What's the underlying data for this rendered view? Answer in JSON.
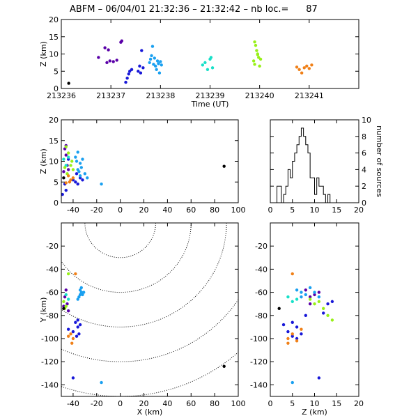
{
  "title": "ABFM – 06/04/01 21:32:36 – 21:32:42 – nb loc.=      87",
  "colors": {
    "axis": "#000000",
    "series": [
      "#000000",
      "#5a00a8",
      "#1818d8",
      "#1aa0f0",
      "#18e0c8",
      "#98f018",
      "#f08018"
    ]
  },
  "chart_data": [
    {
      "id": "time_height",
      "type": "scatter",
      "xlabel": "Time (UT)",
      "ylabel": "Z (km)",
      "xlim": [
        213236,
        213242
      ],
      "ylim": [
        0,
        20
      ],
      "xticks": [
        213236,
        213237,
        213238,
        213239,
        213240,
        213241
      ],
      "yticks": [
        0,
        5,
        10,
        15,
        20
      ],
      "points": [
        [
          213236.15,
          1.5,
          0
        ],
        [
          213236.75,
          9.0,
          1
        ],
        [
          213236.88,
          11.8,
          1
        ],
        [
          213236.95,
          11.2,
          1
        ],
        [
          213236.98,
          8.0,
          1
        ],
        [
          213236.92,
          7.5,
          1
        ],
        [
          213237.05,
          7.8,
          1
        ],
        [
          213237.12,
          8.2,
          1
        ],
        [
          213237.2,
          13.4,
          1
        ],
        [
          213237.22,
          13.8,
          1
        ],
        [
          213237.3,
          1.8,
          2
        ],
        [
          213237.33,
          3.0,
          2
        ],
        [
          213237.36,
          4.2,
          2
        ],
        [
          213237.38,
          5.0,
          2
        ],
        [
          213237.42,
          5.5,
          2
        ],
        [
          213237.55,
          5.0,
          2
        ],
        [
          213237.58,
          6.5,
          2
        ],
        [
          213237.6,
          4.5,
          2
        ],
        [
          213237.62,
          11.0,
          2
        ],
        [
          213237.65,
          6.0,
          2
        ],
        [
          213237.78,
          7.5,
          3
        ],
        [
          213237.8,
          8.5,
          3
        ],
        [
          213237.82,
          9.5,
          3
        ],
        [
          213237.84,
          12.2,
          3
        ],
        [
          213237.86,
          7.0,
          3
        ],
        [
          213237.88,
          8.8,
          3
        ],
        [
          213237.9,
          6.5,
          3
        ],
        [
          213237.92,
          5.5,
          3
        ],
        [
          213237.94,
          8.0,
          3
        ],
        [
          213237.96,
          7.2,
          3
        ],
        [
          213237.98,
          4.5,
          3
        ],
        [
          213238.0,
          7.8,
          3
        ],
        [
          213238.02,
          6.8,
          3
        ],
        [
          213238.85,
          6.8,
          4
        ],
        [
          213238.9,
          7.5,
          4
        ],
        [
          213238.95,
          5.5,
          4
        ],
        [
          213239.0,
          8.5,
          4
        ],
        [
          213239.02,
          9.0,
          4
        ],
        [
          213239.05,
          6.0,
          4
        ],
        [
          213239.9,
          13.5,
          5
        ],
        [
          213239.92,
          12.5,
          5
        ],
        [
          213239.94,
          11.0,
          5
        ],
        [
          213239.96,
          10.0,
          5
        ],
        [
          213239.98,
          9.0,
          5
        ],
        [
          213239.88,
          8.0,
          5
        ],
        [
          213239.9,
          7.0,
          5
        ],
        [
          213240.0,
          6.5,
          5
        ],
        [
          213240.02,
          8.5,
          5
        ],
        [
          213239.96,
          9.8,
          5
        ],
        [
          213240.75,
          6.2,
          6
        ],
        [
          213240.8,
          5.5,
          6
        ],
        [
          213240.85,
          4.5,
          6
        ],
        [
          213240.9,
          6.0,
          6
        ],
        [
          213240.95,
          6.5,
          6
        ],
        [
          213241.0,
          5.8,
          6
        ],
        [
          213241.05,
          6.8,
          6
        ]
      ]
    },
    {
      "id": "x_height",
      "type": "scatter",
      "ylabel": "Z (km)",
      "xlim": [
        -50,
        100
      ],
      "ylim": [
        0,
        20
      ],
      "xticks": [
        -40,
        -20,
        0,
        20,
        40,
        60,
        80,
        100
      ],
      "yticks": [
        0,
        5,
        10,
        15,
        20
      ],
      "points": [
        [
          -47,
          13.0,
          1
        ],
        [
          -46,
          11.5,
          1
        ],
        [
          -44,
          8.0,
          1
        ],
        [
          -48,
          7.5,
          1
        ],
        [
          -45,
          9.0,
          1
        ],
        [
          -46,
          13.8,
          1
        ],
        [
          -49,
          2.0,
          2
        ],
        [
          -46,
          3.0,
          2
        ],
        [
          -47,
          4.5,
          2
        ],
        [
          -36,
          4.5,
          2
        ],
        [
          -38,
          5.0,
          2
        ],
        [
          -34,
          6.0,
          2
        ],
        [
          -40,
          5.5,
          2
        ],
        [
          -44,
          10.5,
          2
        ],
        [
          -37,
          7.0,
          2
        ],
        [
          -32,
          5.5,
          2
        ],
        [
          -36,
          12.2,
          3
        ],
        [
          -34,
          9.5,
          3
        ],
        [
          -33,
          8.5,
          3
        ],
        [
          -35,
          7.5,
          3
        ],
        [
          -32,
          10.5,
          3
        ],
        [
          -38,
          11.0,
          3
        ],
        [
          -36,
          8.0,
          3
        ],
        [
          -30,
          7.0,
          3
        ],
        [
          -34,
          6.5,
          3
        ],
        [
          -37,
          10.0,
          3
        ],
        [
          -16,
          4.5,
          3
        ],
        [
          -28,
          6.0,
          3
        ],
        [
          -48,
          10.5,
          4
        ],
        [
          -46,
          9.0,
          4
        ],
        [
          -44,
          11.0,
          4
        ],
        [
          -46,
          13.5,
          5
        ],
        [
          -44,
          12.0,
          5
        ],
        [
          -42,
          9.0,
          5
        ],
        [
          -40,
          8.0,
          5
        ],
        [
          -45,
          7.0,
          5
        ],
        [
          -47,
          8.5,
          5
        ],
        [
          -41,
          10.0,
          5
        ],
        [
          -44,
          6.5,
          6
        ],
        [
          -42,
          5.5,
          6
        ],
        [
          -40,
          6.0,
          6
        ],
        [
          -46,
          4.8,
          6
        ],
        [
          -43,
          5.0,
          6
        ],
        [
          -48,
          6.0,
          0
        ],
        [
          88,
          8.8,
          0
        ]
      ]
    },
    {
      "id": "histogram",
      "type": "bar",
      "ylabel": "number of sources",
      "xlim": [
        0,
        20
      ],
      "ylim": [
        0,
        10
      ],
      "xticks": [
        0,
        5,
        10,
        15,
        20
      ],
      "yticks": [
        0,
        2,
        4,
        6,
        8,
        10
      ],
      "bin_edges": [
        1.5,
        2,
        2.5,
        3,
        3.5,
        4,
        4.5,
        5,
        5.5,
        6,
        6.5,
        7,
        7.5,
        8,
        8.5,
        9,
        9.5,
        10,
        10.5,
        11,
        11.5,
        12,
        12.5,
        13,
        13.5,
        14
      ],
      "counts": [
        2,
        2,
        0,
        1,
        2,
        4,
        3,
        5,
        6,
        7,
        8,
        9,
        8,
        7,
        6,
        3,
        3,
        1,
        3,
        2,
        2,
        1,
        0,
        1,
        0
      ]
    },
    {
      "id": "plan_view",
      "type": "scatter",
      "xlabel": "X (km)",
      "ylabel": "Y (km)",
      "xlim": [
        -50,
        100
      ],
      "ylim": [
        -150,
        0
      ],
      "xticks": [
        -40,
        -20,
        0,
        20,
        40,
        60,
        80,
        100
      ],
      "yticks": [
        -140,
        -120,
        -100,
        -80,
        -60,
        -40,
        -20
      ],
      "range_circles": {
        "center": [
          0,
          0
        ],
        "radii": [
          30,
          60,
          90,
          120,
          150
        ]
      },
      "points": [
        [
          -46,
          -58,
          1
        ],
        [
          -47,
          -64,
          1
        ],
        [
          -45,
          -70,
          1
        ],
        [
          -48,
          -72,
          1
        ],
        [
          -44,
          -76,
          1
        ],
        [
          -38,
          -86,
          2
        ],
        [
          -36,
          -90,
          2
        ],
        [
          -40,
          -94,
          2
        ],
        [
          -35,
          -96,
          2
        ],
        [
          -37,
          -98,
          2
        ],
        [
          -44,
          -92,
          2
        ],
        [
          -36,
          -84,
          2
        ],
        [
          -34,
          -88,
          2
        ],
        [
          -40,
          -134,
          2
        ],
        [
          -34,
          -58,
          3
        ],
        [
          -33,
          -60,
          3
        ],
        [
          -32,
          -62,
          3
        ],
        [
          -35,
          -64,
          3
        ],
        [
          -36,
          -66,
          3
        ],
        [
          -33,
          -56,
          3
        ],
        [
          -31,
          -60,
          3
        ],
        [
          -34,
          -62,
          3
        ],
        [
          -16,
          -138,
          3
        ],
        [
          -46,
          -62,
          4
        ],
        [
          -44,
          -66,
          4
        ],
        [
          -48,
          -68,
          5
        ],
        [
          -46,
          -72,
          5
        ],
        [
          -44,
          -44,
          5
        ],
        [
          -47,
          -74,
          5
        ],
        [
          -42,
          -96,
          6
        ],
        [
          -40,
          -100,
          6
        ],
        [
          -41,
          -104,
          6
        ],
        [
          -44,
          -98,
          6
        ],
        [
          -38,
          -44,
          6
        ],
        [
          -48,
          -74,
          0
        ],
        [
          88,
          -124,
          0
        ]
      ]
    },
    {
      "id": "z_y_view",
      "type": "scatter",
      "xlabel": "Z (km)",
      "xlim": [
        0,
        20
      ],
      "ylim": [
        -150,
        0
      ],
      "xticks": [
        0,
        5,
        10,
        15,
        20
      ],
      "yticks": [
        -140,
        -120,
        -100,
        -80,
        -60,
        -40,
        -20
      ],
      "points": [
        [
          2,
          -74,
          0
        ],
        [
          8,
          -58,
          1
        ],
        [
          9,
          -64,
          1
        ],
        [
          9,
          -70,
          1
        ],
        [
          10,
          -62,
          1
        ],
        [
          11,
          -60,
          1
        ],
        [
          5,
          -86,
          2
        ],
        [
          6,
          -90,
          2
        ],
        [
          4,
          -94,
          2
        ],
        [
          7,
          -96,
          2
        ],
        [
          5,
          -98,
          2
        ],
        [
          6,
          -100,
          2
        ],
        [
          3,
          -88,
          2
        ],
        [
          8,
          -80,
          2
        ],
        [
          12,
          -78,
          2
        ],
        [
          13,
          -70,
          2
        ],
        [
          14,
          -68,
          2
        ],
        [
          11,
          -134,
          2
        ],
        [
          6,
          -58,
          3
        ],
        [
          7,
          -60,
          3
        ],
        [
          8,
          -62,
          3
        ],
        [
          9,
          -56,
          3
        ],
        [
          10,
          -60,
          3
        ],
        [
          11,
          -64,
          3
        ],
        [
          7,
          -64,
          3
        ],
        [
          5,
          -138,
          3
        ],
        [
          4,
          -64,
          4
        ],
        [
          5,
          -68,
          4
        ],
        [
          6,
          -66,
          4
        ],
        [
          9,
          -66,
          5
        ],
        [
          10,
          -70,
          5
        ],
        [
          12,
          -74,
          5
        ],
        [
          13,
          -80,
          5
        ],
        [
          14,
          -84,
          5
        ],
        [
          11,
          -68,
          5
        ],
        [
          5,
          -44,
          6
        ],
        [
          5,
          -96,
          6
        ],
        [
          4,
          -100,
          6
        ],
        [
          6,
          -102,
          6
        ],
        [
          4,
          -104,
          6
        ],
        [
          7,
          -92,
          6
        ]
      ]
    }
  ]
}
